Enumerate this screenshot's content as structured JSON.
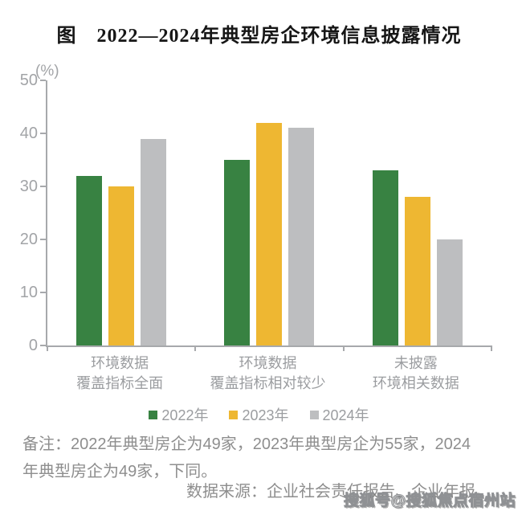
{
  "title": "图　2022—2024年典型房企环境信息披露情况",
  "chart_data": {
    "type": "bar",
    "title": "图　2022—2024年典型房企环境信息披露情况",
    "categories": [
      "环境数据\n覆盖指标全面",
      "环境数据\n覆盖指标相对较少",
      "未披露\n环境相关数据"
    ],
    "series": [
      {
        "name": "2022年",
        "color": "#388242",
        "values": [
          32,
          35,
          33
        ]
      },
      {
        "name": "2023年",
        "color": "#EEB732",
        "values": [
          30,
          42,
          28
        ]
      },
      {
        "name": "2024年",
        "color": "#BDBEC0",
        "values": [
          39,
          41,
          20
        ]
      }
    ],
    "xlabel": "",
    "ylabel": "(%)",
    "ylim": [
      0,
      50
    ],
    "yticks": [
      0,
      10,
      20,
      30,
      40,
      50
    ],
    "grid": false,
    "legend_position": "bottom",
    "axis_color": "#A7A9AC"
  },
  "notes": {
    "remark": "备注：2022年典型房企为49家，2023年典型房企为55家，2024\n年典型房企为49家，下同。",
    "source": "数据来源：企业社会责任报告、企业年报。"
  },
  "watermark": "搜狐号@搜狐焦点宿州站"
}
